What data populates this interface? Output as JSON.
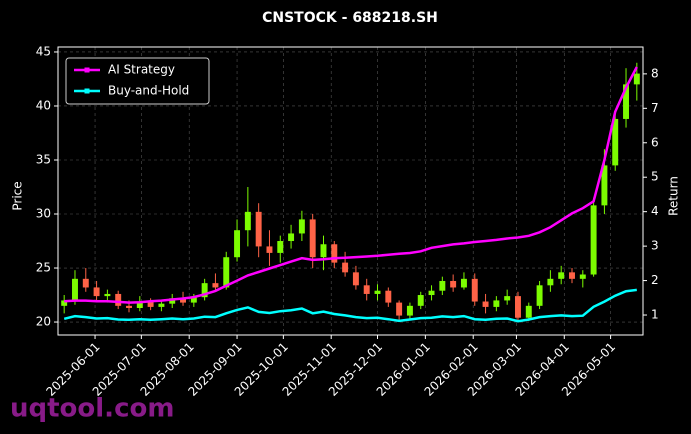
{
  "chart_data": {
    "type": "candlestick",
    "title": "CNSTOCK - 688218.SH",
    "ylabel": "Price",
    "y2label": "Return",
    "watermark": "uqtool.com",
    "x": [
      "2025-05-12",
      "2025-05-19",
      "2025-05-26",
      "2025-06-02",
      "2025-06-09",
      "2025-06-16",
      "2025-06-23",
      "2025-06-30",
      "2025-07-07",
      "2025-07-14",
      "2025-07-21",
      "2025-07-28",
      "2025-08-04",
      "2025-08-11",
      "2025-08-18",
      "2025-08-25",
      "2025-09-01",
      "2025-09-08",
      "2025-09-15",
      "2025-09-22",
      "2025-09-29",
      "2025-10-06",
      "2025-10-13",
      "2025-10-20",
      "2025-10-27",
      "2025-11-03",
      "2025-11-10",
      "2025-11-17",
      "2025-11-24",
      "2025-12-01",
      "2025-12-08",
      "2025-12-15",
      "2025-12-22",
      "2025-12-29",
      "2026-01-05",
      "2026-01-12",
      "2026-01-19",
      "2026-01-26",
      "2026-02-02",
      "2026-02-09",
      "2026-02-16",
      "2026-02-23",
      "2026-03-02",
      "2026-03-09",
      "2026-03-16",
      "2026-03-23",
      "2026-03-30",
      "2026-04-06",
      "2026-04-13",
      "2026-04-20",
      "2026-04-27",
      "2026-05-04",
      "2026-05-11",
      "2026-05-18"
    ],
    "open": [
      21.5,
      22.0,
      24.0,
      23.2,
      22.4,
      22.6,
      21.5,
      21.3,
      21.9,
      21.4,
      21.7,
      22.2,
      21.8,
      22.3,
      23.6,
      23.2,
      26.0,
      28.5,
      30.2,
      27.0,
      26.4,
      27.5,
      28.2,
      29.5,
      26.0,
      27.2,
      25.5,
      24.6,
      23.4,
      22.6,
      22.9,
      21.8,
      20.6,
      21.5,
      22.5,
      22.9,
      23.8,
      23.2,
      24.0,
      21.9,
      21.4,
      22.0,
      22.4,
      20.4,
      21.5,
      23.4,
      24.0,
      24.6,
      24.0,
      24.4,
      30.8,
      34.5,
      38.8,
      42.0
    ],
    "high": [
      22.5,
      24.8,
      25.0,
      23.8,
      23.0,
      22.9,
      22.0,
      22.4,
      22.2,
      22.0,
      22.6,
      22.8,
      22.6,
      24.0,
      24.5,
      26.5,
      29.5,
      32.5,
      31.0,
      28.5,
      28.0,
      29.0,
      30.3,
      30.0,
      28.0,
      27.5,
      26.5,
      25.2,
      24.0,
      23.5,
      23.2,
      22.0,
      21.8,
      22.8,
      23.4,
      24.2,
      24.4,
      24.6,
      24.5,
      22.6,
      22.4,
      23.0,
      22.8,
      21.8,
      23.8,
      24.8,
      25.2,
      25.0,
      24.8,
      31.5,
      36.0,
      39.5,
      43.5,
      44.0
    ],
    "low": [
      20.8,
      21.6,
      22.8,
      22.0,
      21.8,
      21.2,
      20.9,
      21.0,
      21.1,
      21.0,
      21.3,
      21.5,
      21.4,
      22.0,
      22.8,
      23.0,
      25.6,
      27.0,
      26.0,
      25.2,
      25.5,
      26.8,
      27.5,
      25.0,
      24.8,
      25.0,
      24.2,
      23.0,
      22.0,
      22.0,
      21.4,
      20.2,
      20.3,
      21.2,
      22.0,
      22.5,
      22.8,
      23.0,
      21.5,
      20.8,
      21.0,
      21.6,
      20.0,
      20.1,
      21.2,
      22.8,
      23.5,
      23.6,
      23.2,
      24.2,
      30.0,
      34.0,
      38.0,
      40.5
    ],
    "close": [
      22.0,
      24.0,
      23.2,
      22.4,
      22.6,
      21.5,
      21.3,
      21.9,
      21.4,
      21.7,
      22.2,
      21.8,
      22.3,
      23.6,
      23.2,
      26.0,
      28.5,
      30.2,
      27.0,
      26.4,
      27.5,
      28.2,
      29.5,
      26.0,
      27.2,
      25.5,
      24.6,
      23.4,
      22.6,
      22.9,
      21.8,
      20.6,
      21.5,
      22.5,
      22.9,
      23.8,
      23.2,
      24.0,
      21.9,
      21.4,
      22.0,
      22.4,
      20.4,
      21.5,
      23.4,
      24.0,
      24.6,
      24.0,
      24.4,
      30.8,
      34.5,
      38.8,
      42.0,
      43.0
    ],
    "up_color": "#7cfc00",
    "down_color": "#ff6347",
    "series": [
      {
        "name": "AI Strategy",
        "color": "#ff00ff",
        "axis": "y2",
        "values": [
          1.4,
          1.42,
          1.42,
          1.4,
          1.4,
          1.38,
          1.36,
          1.37,
          1.4,
          1.42,
          1.45,
          1.48,
          1.52,
          1.6,
          1.7,
          1.85,
          2.0,
          2.15,
          2.25,
          2.35,
          2.45,
          2.55,
          2.65,
          2.6,
          2.62,
          2.65,
          2.66,
          2.68,
          2.7,
          2.72,
          2.75,
          2.78,
          2.8,
          2.85,
          2.95,
          3.0,
          3.05,
          3.08,
          3.12,
          3.15,
          3.18,
          3.22,
          3.25,
          3.3,
          3.4,
          3.55,
          3.75,
          3.95,
          4.1,
          4.3,
          5.5,
          6.9,
          7.6,
          8.2
        ]
      },
      {
        "name": "Buy-and-Hold",
        "color": "#00ffff",
        "axis": "y2",
        "values": [
          0.89,
          0.97,
          0.94,
          0.9,
          0.91,
          0.87,
          0.86,
          0.88,
          0.86,
          0.88,
          0.9,
          0.88,
          0.9,
          0.95,
          0.94,
          1.05,
          1.15,
          1.22,
          1.09,
          1.06,
          1.11,
          1.14,
          1.19,
          1.05,
          1.1,
          1.03,
          0.99,
          0.94,
          0.91,
          0.92,
          0.88,
          0.83,
          0.87,
          0.91,
          0.92,
          0.96,
          0.94,
          0.97,
          0.88,
          0.86,
          0.89,
          0.9,
          0.82,
          0.87,
          0.94,
          0.97,
          0.99,
          0.97,
          0.98,
          1.24,
          1.39,
          1.56,
          1.69,
          1.73
        ]
      }
    ],
    "xlim": [
      "2025-05-08",
      "2026-05-22"
    ],
    "xticks": [
      "2025-06-01",
      "2025-07-01",
      "2025-08-01",
      "2025-09-01",
      "2025-10-01",
      "2025-11-01",
      "2025-12-01",
      "2026-01-01",
      "2026-02-01",
      "2026-03-01",
      "2026-04-01",
      "2026-05-01"
    ],
    "ylim": [
      18.8,
      45.46
    ],
    "yticks": [
      20,
      25,
      30,
      35,
      40,
      45
    ],
    "y2lim": [
      0.42,
      8.78
    ],
    "y2ticks": [
      1,
      2,
      3,
      4,
      5,
      6,
      7,
      8
    ],
    "grid": true,
    "legend": "upper left"
  }
}
